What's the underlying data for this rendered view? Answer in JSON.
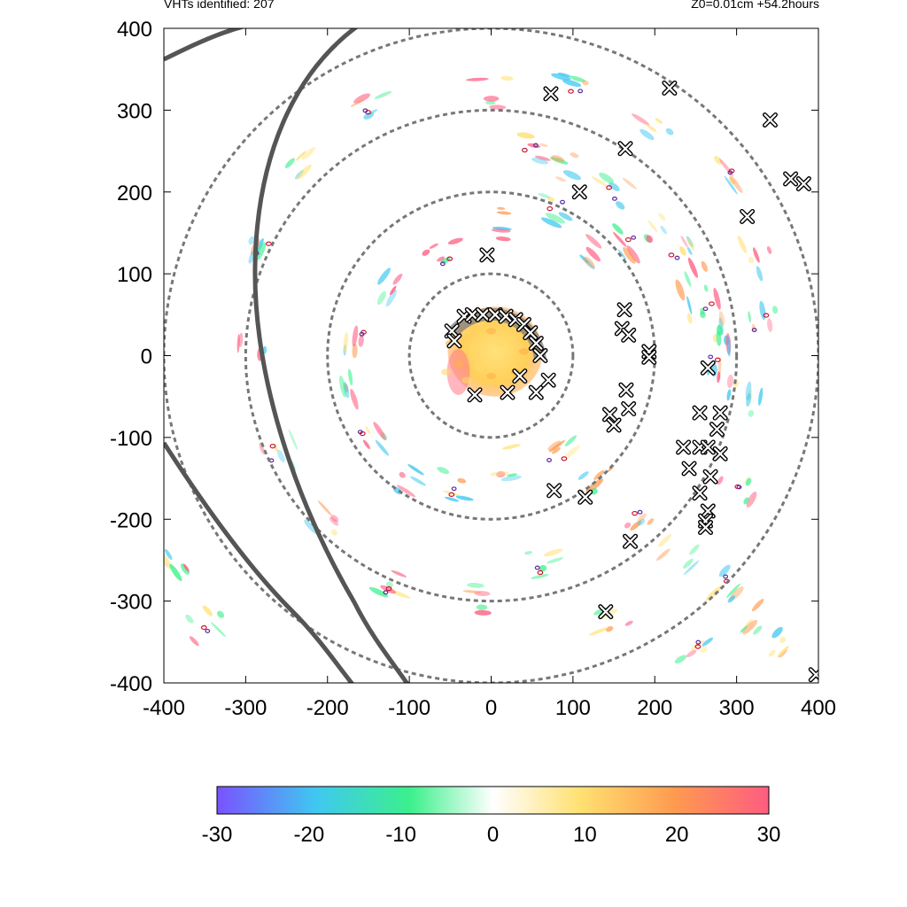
{
  "header": {
    "left_text": "VHTs identified: 207",
    "right_text": "Z0=0.01cm  +54.2hours"
  },
  "chart_data": {
    "type": "heatmap",
    "title": "",
    "xlabel": "",
    "ylabel": "",
    "xlim": [
      -400,
      400
    ],
    "ylim": [
      -400,
      400
    ],
    "x_ticks": [
      -400,
      -300,
      -200,
      -100,
      0,
      100,
      200,
      300,
      400
    ],
    "y_ticks": [
      -400,
      -300,
      -200,
      -100,
      0,
      100,
      200,
      300,
      400
    ],
    "range_rings_radius": [
      100,
      200,
      300,
      400
    ],
    "vht_count": 207,
    "colorbar": {
      "range": [
        -30,
        30
      ],
      "ticks": [
        -30,
        -20,
        -10,
        0,
        10,
        20,
        30
      ],
      "colors": [
        "#7a52ff",
        "#3fc8f0",
        "#3cf08c",
        "#ffffff",
        "#ffe070",
        "#ff9a50",
        "#ff5c80"
      ]
    },
    "vht_markers": [
      [
        -33,
        48
      ],
      [
        -23,
        50
      ],
      [
        -10,
        50
      ],
      [
        5,
        50
      ],
      [
        18,
        48
      ],
      [
        30,
        44
      ],
      [
        40,
        38
      ],
      [
        48,
        28
      ],
      [
        55,
        15
      ],
      [
        60,
        0
      ],
      [
        -48,
        30
      ],
      [
        -45,
        18
      ],
      [
        35,
        -25
      ],
      [
        55,
        -45
      ],
      [
        70,
        -30
      ],
      [
        -20,
        -48
      ],
      [
        20,
        -45
      ],
      [
        73,
        320
      ],
      [
        218,
        327
      ],
      [
        341,
        288
      ],
      [
        164,
        253
      ],
      [
        108,
        200
      ],
      [
        366,
        216
      ],
      [
        382,
        210
      ],
      [
        313,
        170
      ],
      [
        -5,
        123
      ],
      [
        163,
        56
      ],
      [
        160,
        33
      ],
      [
        168,
        25
      ],
      [
        193,
        5
      ],
      [
        193,
        -2
      ],
      [
        265,
        -15
      ],
      [
        165,
        -42
      ],
      [
        168,
        -65
      ],
      [
        145,
        -72
      ],
      [
        150,
        -85
      ],
      [
        255,
        -70
      ],
      [
        280,
        -70
      ],
      [
        276,
        -90
      ],
      [
        235,
        -112
      ],
      [
        255,
        -112
      ],
      [
        265,
        -112
      ],
      [
        280,
        -120
      ],
      [
        242,
        -138
      ],
      [
        268,
        -148
      ],
      [
        255,
        -168
      ],
      [
        265,
        -190
      ],
      [
        262,
        -202
      ],
      [
        262,
        -210
      ],
      [
        77,
        -165
      ],
      [
        115,
        -173
      ],
      [
        170,
        -227
      ],
      [
        140,
        -313
      ],
      [
        397,
        -390
      ]
    ],
    "cells_positive": [
      [
        -50,
        15
      ],
      [
        -30,
        30
      ],
      [
        -15,
        40
      ],
      [
        0,
        30
      ],
      [
        -20,
        10
      ],
      [
        10,
        15
      ],
      [
        -40,
        -10
      ],
      [
        20,
        -5
      ],
      [
        -30,
        -30
      ],
      [
        0,
        -25
      ],
      [
        25,
        20
      ],
      [
        -55,
        -20
      ],
      [
        40,
        5
      ],
      [
        5,
        -10
      ],
      [
        -15,
        -15
      ],
      [
        30,
        -20
      ]
    ],
    "cells_bands": [
      [
        170,
        140
      ],
      [
        200,
        150
      ],
      [
        230,
        120
      ],
      [
        250,
        90
      ],
      [
        260,
        60
      ],
      [
        270,
        30
      ],
      [
        275,
        0
      ],
      [
        280,
        -30
      ],
      [
        150,
        200
      ],
      [
        100,
        230
      ],
      [
        50,
        250
      ],
      [
        20,
        160
      ],
      [
        80,
        180
      ],
      [
        120,
        120
      ],
      [
        -60,
        120
      ],
      [
        -120,
        80
      ],
      [
        -160,
        20
      ],
      [
        -170,
        -40
      ],
      [
        -150,
        -100
      ],
      [
        -100,
        -150
      ],
      [
        -40,
        -160
      ],
      [
        20,
        -130
      ],
      [
        80,
        -120
      ],
      [
        130,
        -150
      ],
      [
        180,
        -200
      ],
      [
        230,
        -240
      ],
      [
        280,
        -280
      ],
      [
        320,
        -320
      ],
      [
        300,
        -160
      ],
      [
        320,
        -60
      ],
      [
        330,
        40
      ],
      [
        320,
        120
      ],
      [
        290,
        220
      ],
      [
        200,
        280
      ],
      [
        100,
        330
      ],
      [
        0,
        320
      ],
      [
        -150,
        300
      ],
      [
        -230,
        230
      ],
      [
        -280,
        130
      ],
      [
        -290,
        0
      ],
      [
        -260,
        -120
      ],
      [
        -200,
        -200
      ],
      [
        -120,
        -280
      ],
      [
        -30,
        -300
      ],
      [
        60,
        -260
      ],
      [
        150,
        -330
      ],
      [
        250,
        -360
      ],
      [
        360,
        -350
      ],
      [
        -350,
        -330
      ],
      [
        -380,
        -250
      ]
    ]
  }
}
